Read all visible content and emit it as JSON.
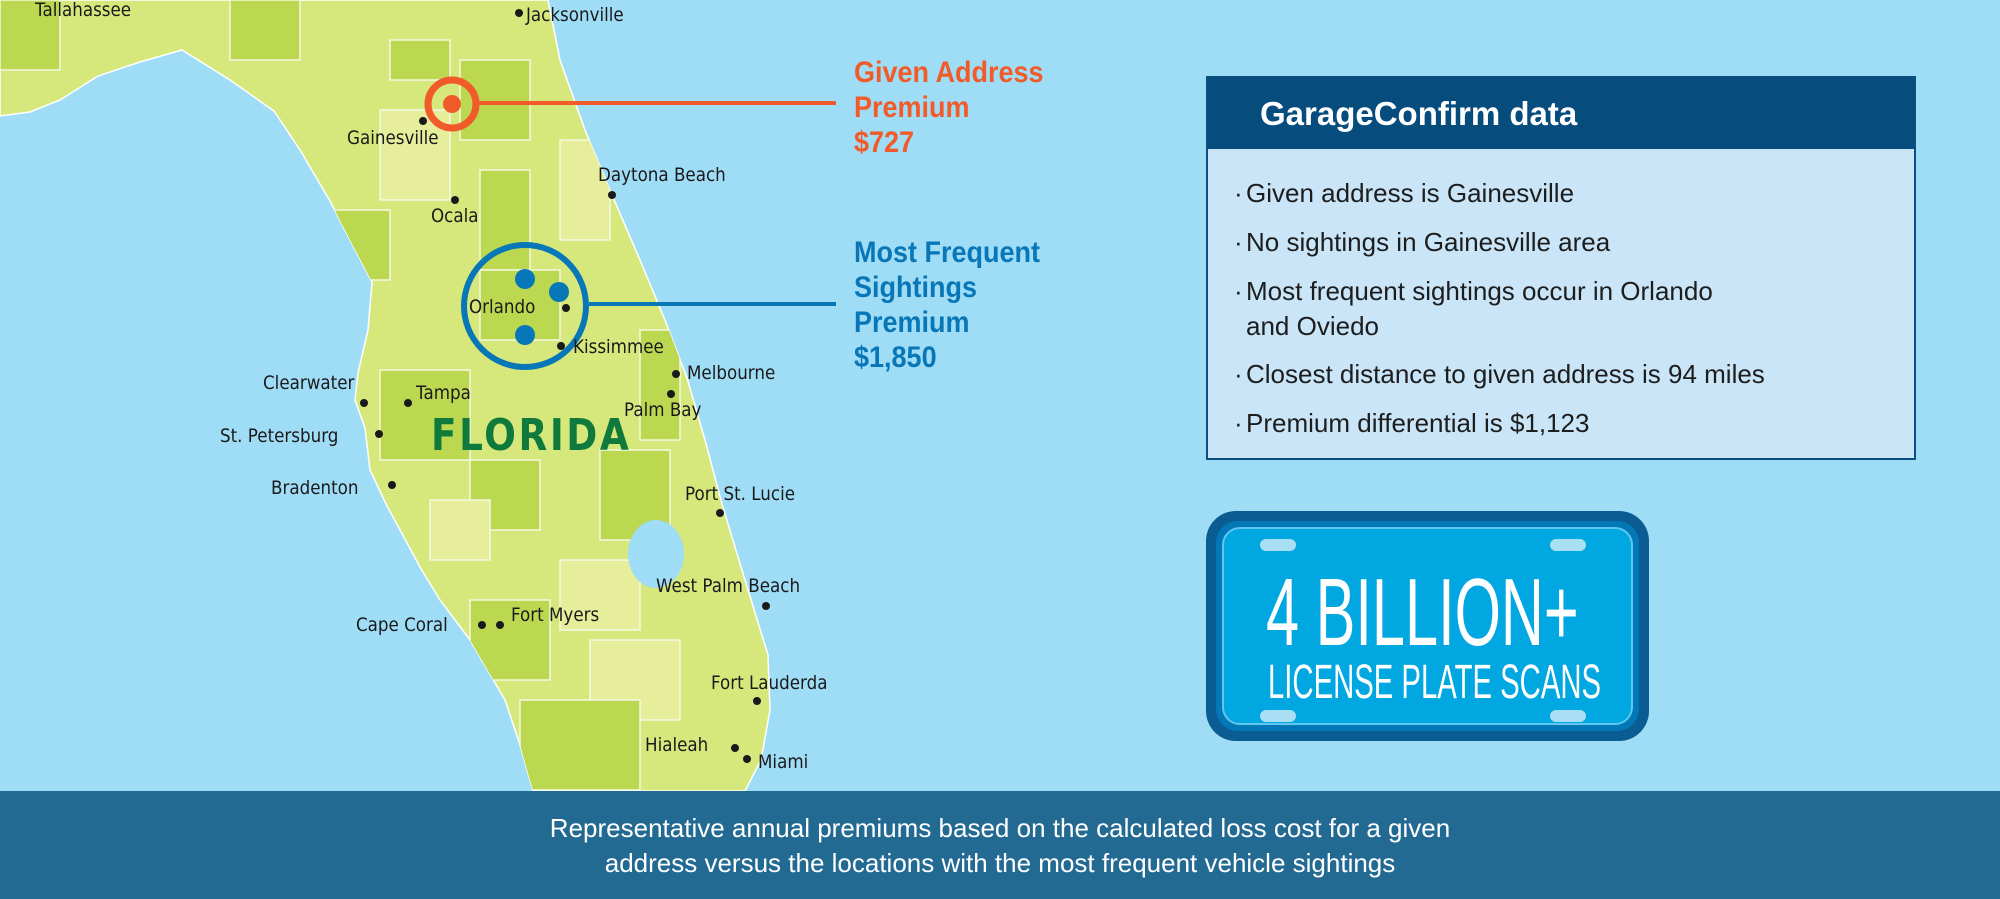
{
  "map": {
    "state_label": "FLORIDA",
    "cities": [
      {
        "name": "Tallahassee"
      },
      {
        "name": "Jacksonville"
      },
      {
        "name": "Gainesville"
      },
      {
        "name": "Daytona Beach"
      },
      {
        "name": "Ocala"
      },
      {
        "name": "Orlando"
      },
      {
        "name": "Kissimmee"
      },
      {
        "name": "Melbourne"
      },
      {
        "name": "Palm Bay"
      },
      {
        "name": "Clearwater"
      },
      {
        "name": "Tampa"
      },
      {
        "name": "St. Petersburg"
      },
      {
        "name": "Bradenton"
      },
      {
        "name": "Port St. Lucie"
      },
      {
        "name": "West Palm Beach"
      },
      {
        "name": "Cape Coral"
      },
      {
        "name": "Fort Myers"
      },
      {
        "name": "Fort Lauderda"
      },
      {
        "name": "Hialeah"
      },
      {
        "name": "Miami"
      }
    ],
    "colors": {
      "ocean": "#9fdcf6",
      "land": "#d6e87c",
      "land_dark": "#bcd851",
      "land_light": "#e6ee9c",
      "given": "#f15a29",
      "frequent": "#0877b8"
    }
  },
  "given_address": {
    "line1": "Given Address",
    "line2": "Premium",
    "value": "$727"
  },
  "most_frequent": {
    "line1": "Most Frequent",
    "line2": "Sightings",
    "line3": "Premium",
    "value": "$1,850"
  },
  "panel": {
    "title": "GarageConfirm data",
    "bullets": [
      "Given address is Gainesville",
      "No sightings in Gainesville area",
      "Most frequent sightings occur in Orlando",
      "and Oviedo",
      "Closest distance to given address is 94 miles",
      "Premium differential is $1,123"
    ],
    "bullet_char": "·"
  },
  "plate": {
    "big": "4 BILLION+",
    "small": "LICENSE PLATE SCANS"
  },
  "footer": {
    "line1": "Representative annual premiums based on the calculated loss cost for a given",
    "line2": "address versus the locations with the most frequent vehicle sightings"
  }
}
